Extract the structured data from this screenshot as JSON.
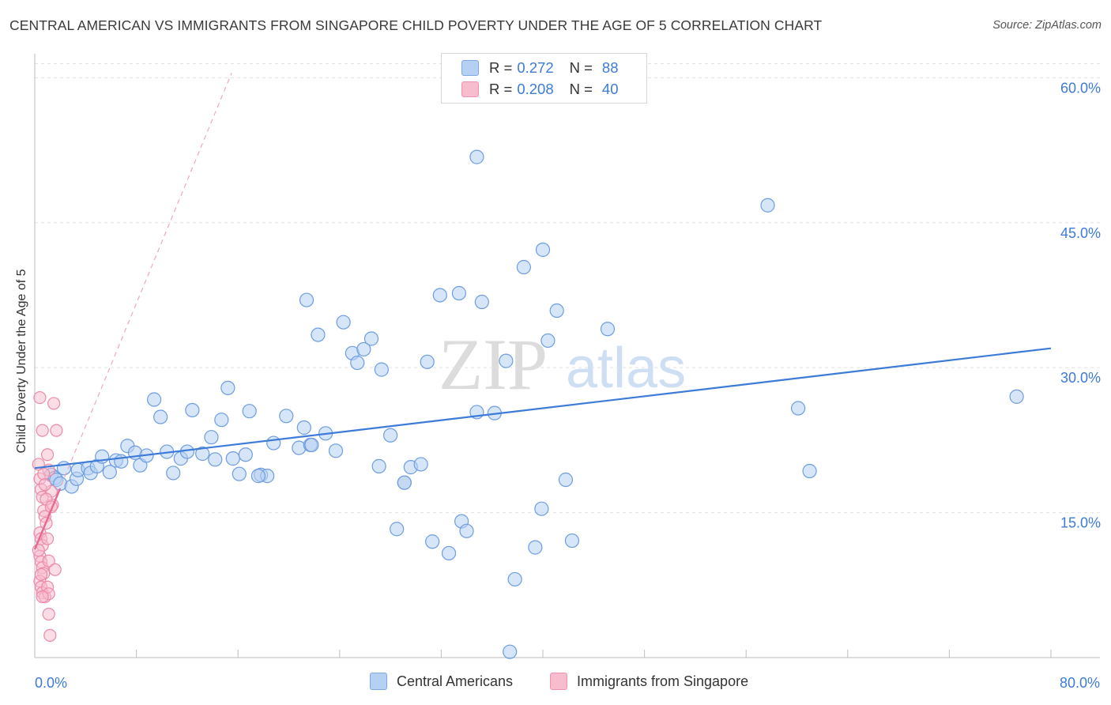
{
  "title": "CENTRAL AMERICAN VS IMMIGRANTS FROM SINGAPORE CHILD POVERTY UNDER THE AGE OF 5 CORRELATION CHART",
  "source": "Source: ZipAtlas.com",
  "watermark": {
    "zip": "ZIP",
    "atlas": "atlas"
  },
  "colors": {
    "blue": "#3d7bd8",
    "blue_fill": "#b6d0f3",
    "pink": "#e8698f",
    "pink_fill": "#f7bccd",
    "grid": "#e2e2e2"
  },
  "legend_top": {
    "rows": [
      {
        "name": "Central Americans",
        "r_label": "R =",
        "r_value": "0.272",
        "n_label": "N =",
        "n_value": "88",
        "color": "blue"
      },
      {
        "name": "Immigrants from Singapore",
        "r_label": "R =",
        "r_value": "0.208",
        "n_label": "N =",
        "n_value": "40",
        "color": "pink"
      }
    ]
  },
  "legend_bottom": {
    "items": [
      "Central Americans",
      "Immigrants from Singapore"
    ]
  },
  "chart_data": {
    "type": "scatter",
    "title": "CENTRAL AMERICAN VS IMMIGRANTS FROM SINGAPORE CHILD POVERTY UNDER THE AGE OF 5 CORRELATION CHART",
    "xlabel": "",
    "ylabel": "Child Poverty Under the Age of 5",
    "xlim": [
      0,
      80
    ],
    "ylim": [
      0,
      61.5
    ],
    "x_tick_labels": [
      {
        "value": 0,
        "label": "0.0%"
      },
      {
        "value": 80,
        "label": "80.0%"
      }
    ],
    "y_tick_labels": [
      {
        "value": 15,
        "label": "15.0%"
      },
      {
        "value": 30,
        "label": "30.0%"
      },
      {
        "value": 45,
        "label": "45.0%"
      },
      {
        "value": 60,
        "label": "60.0%"
      }
    ],
    "grid": true,
    "legend_position": "top-center",
    "series": [
      {
        "name": "Central Americans",
        "color": "blue",
        "R": 0.272,
        "N": 88,
        "trend": {
          "x": [
            0,
            80
          ],
          "y": [
            19.6,
            32.0
          ]
        },
        "points": [
          [
            1.3,
            18.9
          ],
          [
            1.6,
            18.6
          ],
          [
            1.7,
            18.4
          ],
          [
            2.0,
            18.0
          ],
          [
            2.3,
            19.6
          ],
          [
            2.9,
            17.7
          ],
          [
            3.3,
            18.5
          ],
          [
            3.4,
            19.4
          ],
          [
            4.2,
            19.6
          ],
          [
            4.4,
            19.1
          ],
          [
            4.9,
            19.8
          ],
          [
            5.3,
            20.8
          ],
          [
            5.9,
            19.2
          ],
          [
            6.4,
            20.4
          ],
          [
            6.8,
            20.3
          ],
          [
            7.3,
            21.9
          ],
          [
            7.9,
            21.2
          ],
          [
            8.3,
            19.9
          ],
          [
            8.8,
            20.9
          ],
          [
            9.4,
            26.7
          ],
          [
            9.9,
            24.9
          ],
          [
            10.4,
            21.3
          ],
          [
            10.9,
            19.1
          ],
          [
            11.5,
            20.6
          ],
          [
            12.0,
            21.3
          ],
          [
            12.4,
            25.6
          ],
          [
            13.2,
            21.1
          ],
          [
            13.9,
            22.8
          ],
          [
            14.2,
            20.5
          ],
          [
            14.7,
            24.6
          ],
          [
            15.2,
            27.9
          ],
          [
            15.6,
            20.6
          ],
          [
            16.1,
            19.0
          ],
          [
            16.6,
            21.0
          ],
          [
            16.9,
            25.5
          ],
          [
            17.8,
            18.9
          ],
          [
            18.3,
            18.8
          ],
          [
            18.8,
            22.2
          ],
          [
            19.8,
            25.0
          ],
          [
            20.8,
            21.7
          ],
          [
            21.2,
            23.8
          ],
          [
            21.7,
            22.0
          ],
          [
            21.4,
            37.0
          ],
          [
            22.9,
            23.2
          ],
          [
            22.3,
            33.4
          ],
          [
            23.7,
            21.4
          ],
          [
            24.3,
            34.7
          ],
          [
            25.0,
            31.5
          ],
          [
            25.4,
            30.5
          ],
          [
            25.9,
            31.9
          ],
          [
            26.5,
            33.0
          ],
          [
            27.1,
            19.8
          ],
          [
            27.3,
            29.8
          ],
          [
            28.0,
            23.0
          ],
          [
            28.5,
            13.3
          ],
          [
            29.1,
            18.1
          ],
          [
            29.6,
            19.7
          ],
          [
            30.4,
            20.0
          ],
          [
            30.9,
            30.6
          ],
          [
            31.3,
            12.0
          ],
          [
            31.9,
            37.5
          ],
          [
            32.6,
            10.8
          ],
          [
            33.4,
            37.7
          ],
          [
            33.6,
            14.1
          ],
          [
            34.0,
            13.1
          ],
          [
            34.8,
            25.4
          ],
          [
            34.8,
            51.8
          ],
          [
            35.2,
            36.8
          ],
          [
            36.2,
            25.3
          ],
          [
            37.1,
            30.7
          ],
          [
            37.8,
            8.1
          ],
          [
            37.4,
            0.6
          ],
          [
            38.5,
            40.4
          ],
          [
            39.4,
            11.4
          ],
          [
            39.9,
            15.4
          ],
          [
            40.0,
            42.2
          ],
          [
            40.4,
            32.8
          ],
          [
            41.1,
            35.9
          ],
          [
            41.8,
            18.4
          ],
          [
            42.3,
            12.1
          ],
          [
            45.1,
            34.0
          ],
          [
            57.7,
            46.8
          ],
          [
            60.1,
            25.8
          ],
          [
            61.0,
            19.3
          ],
          [
            77.3,
            27.0
          ],
          [
            29.1,
            18.1
          ],
          [
            21.8,
            22.0
          ],
          [
            17.6,
            18.8
          ]
        ]
      },
      {
        "name": "Immigrants from Singapore",
        "color": "pink",
        "R": 0.208,
        "N": 40,
        "trend": {
          "x": [
            0,
            2.0
          ],
          "y": [
            11.2,
            17.5
          ]
        },
        "trend_extended": {
          "x": [
            0,
            15.5
          ],
          "y": [
            11.2,
            60.5
          ]
        },
        "points": [
          [
            0.3,
            20.0
          ],
          [
            0.4,
            18.5
          ],
          [
            0.5,
            17.4
          ],
          [
            0.6,
            16.6
          ],
          [
            0.7,
            15.2
          ],
          [
            0.8,
            14.6
          ],
          [
            0.9,
            13.9
          ],
          [
            0.4,
            12.9
          ],
          [
            0.5,
            12.3
          ],
          [
            0.6,
            11.6
          ],
          [
            0.4,
            10.5
          ],
          [
            0.5,
            9.9
          ],
          [
            0.6,
            9.3
          ],
          [
            0.7,
            8.7
          ],
          [
            0.4,
            7.9
          ],
          [
            0.5,
            7.3
          ],
          [
            0.6,
            6.7
          ],
          [
            0.8,
            6.3
          ],
          [
            0.4,
            26.9
          ],
          [
            0.6,
            23.5
          ],
          [
            1.0,
            21.0
          ],
          [
            1.5,
            26.3
          ],
          [
            1.7,
            23.5
          ],
          [
            1.1,
            19.4
          ],
          [
            1.3,
            17.2
          ],
          [
            1.4,
            15.8
          ],
          [
            1.0,
            12.3
          ],
          [
            1.1,
            10.0
          ],
          [
            1.6,
            9.1
          ],
          [
            1.0,
            7.3
          ],
          [
            1.1,
            6.6
          ],
          [
            1.1,
            4.5
          ],
          [
            1.2,
            2.3
          ],
          [
            0.7,
            19.0
          ],
          [
            0.8,
            17.9
          ],
          [
            0.9,
            16.4
          ],
          [
            0.3,
            11.1
          ],
          [
            0.5,
            8.6
          ],
          [
            0.6,
            6.3
          ],
          [
            1.3,
            15.6
          ]
        ]
      }
    ]
  }
}
